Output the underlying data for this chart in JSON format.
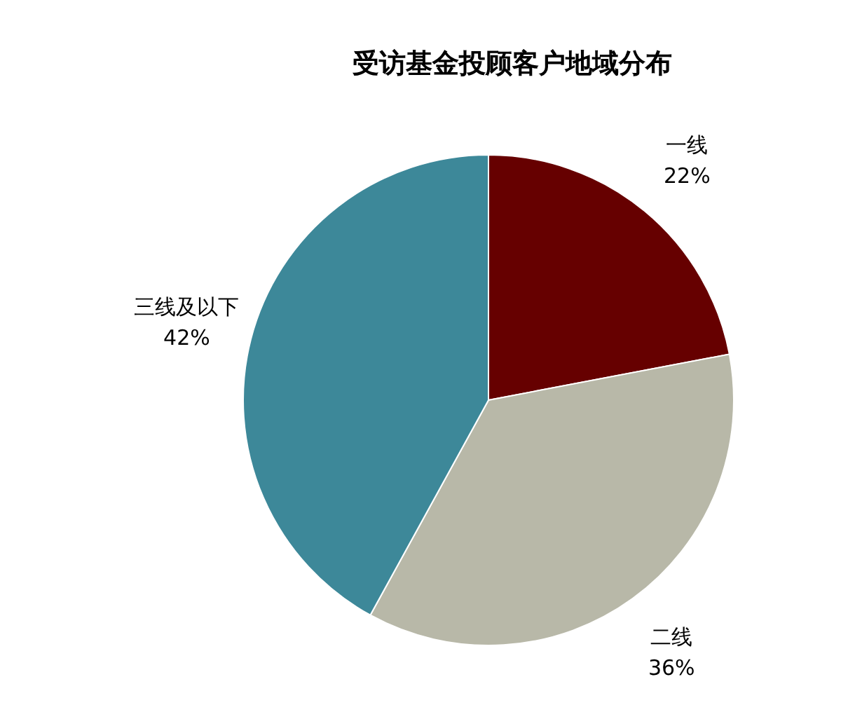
{
  "chart_data": {
    "type": "pie",
    "title": "受访基金投顾客户地域分布",
    "categories": [
      "一线",
      "二线",
      "三线及以下"
    ],
    "values": [
      22,
      36,
      42
    ],
    "colors": [
      "#660000",
      "#b8b8a8",
      "#3d8899"
    ],
    "value_labels": [
      "22%",
      "36%",
      "42%"
    ]
  }
}
